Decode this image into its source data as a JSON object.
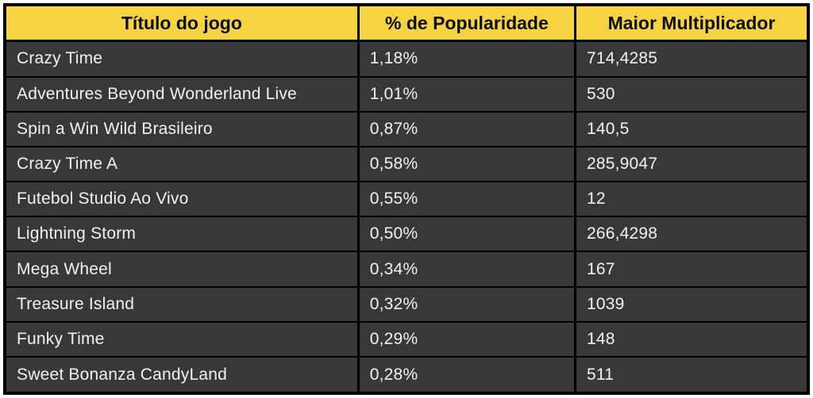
{
  "chart_data": {
    "type": "table",
    "title": "",
    "columns": [
      "Título do jogo",
      "% de Popularidade",
      "Maior Multiplicador"
    ],
    "rows": [
      {
        "title": "Crazy Time",
        "popularity": "1,18%",
        "multiplier": "714,4285"
      },
      {
        "title": "Adventures Beyond Wonderland Live",
        "popularity": "1,01%",
        "multiplier": "530"
      },
      {
        "title": "Spin a Win Wild Brasileiro",
        "popularity": "0,87%",
        "multiplier": "140,5"
      },
      {
        "title": "Crazy Time A",
        "popularity": "0,58%",
        "multiplier": "285,9047"
      },
      {
        "title": "Futebol Studio Ao Vivo",
        "popularity": "0,55%",
        "multiplier": "12"
      },
      {
        "title": "Lightning Storm",
        "popularity": "0,50%",
        "multiplier": "266,4298"
      },
      {
        "title": "Mega Wheel",
        "popularity": "0,34%",
        "multiplier": "167"
      },
      {
        "title": "Treasure Island",
        "popularity": "0,32%",
        "multiplier": "1039"
      },
      {
        "title": "Funky Time",
        "popularity": "0,29%",
        "multiplier": "148"
      },
      {
        "title": "Sweet Bonanza CandyLand",
        "popularity": "0,28%",
        "multiplier": "511"
      }
    ]
  },
  "colors": {
    "header_bg": "#F5D342",
    "header_text": "#0D0D0D",
    "row_bg": "#383838",
    "row_text": "#F1F1F1",
    "grid_border": "#000000",
    "page_bg": "#FFFFFF"
  }
}
